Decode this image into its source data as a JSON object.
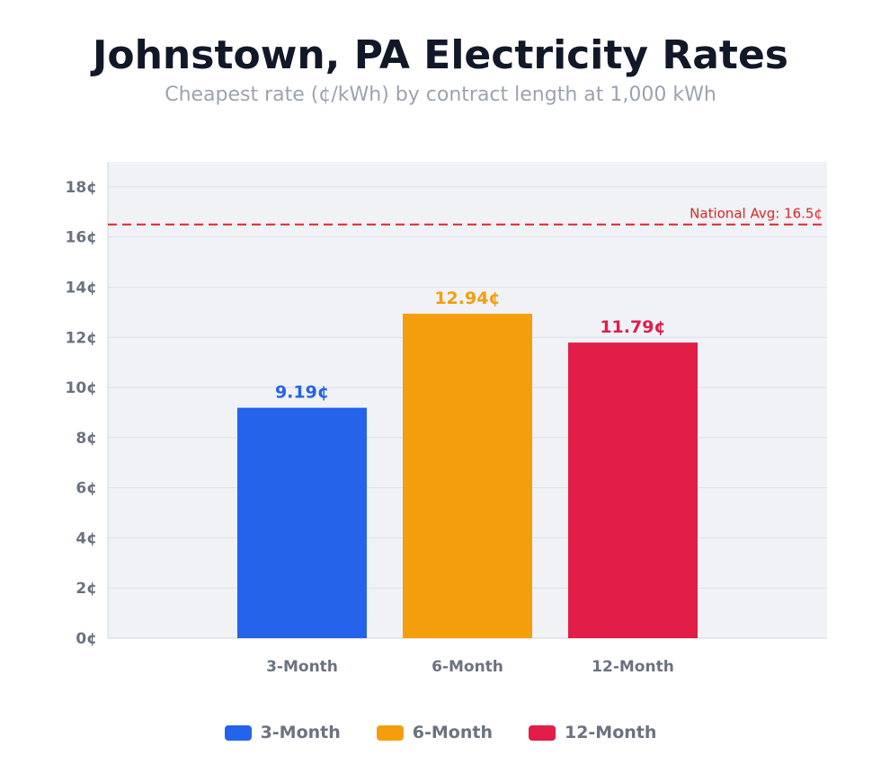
{
  "chart_data": {
    "type": "bar",
    "title": "Johnstown, PA Electricity Rates",
    "subtitle": "Cheapest rate (¢/kWh) by contract length at 1,000 kWh",
    "xlabel": "",
    "ylabel": "",
    "categories": [
      "3-Month",
      "6-Month",
      "12-Month"
    ],
    "values": [
      9.19,
      12.94,
      11.79
    ],
    "data_labels": [
      "9.19¢",
      "12.94¢",
      "11.79¢"
    ],
    "colors": [
      "#2563eb",
      "#f59e0b",
      "#e11d48"
    ],
    "ylim": [
      0,
      19
    ],
    "yticks": [
      0,
      2,
      4,
      6,
      8,
      10,
      12,
      14,
      16,
      18
    ],
    "ytick_labels": [
      "0¢",
      "2¢",
      "4¢",
      "6¢",
      "8¢",
      "10¢",
      "12¢",
      "14¢",
      "16¢",
      "18¢"
    ],
    "grid": true,
    "reference_line": {
      "value": 16.5,
      "label": "National Avg: 16.5¢",
      "color": "#dc2626",
      "style": "dashed"
    },
    "legend": {
      "placement": "bottom",
      "entries": [
        "3-Month",
        "6-Month",
        "12-Month"
      ]
    }
  }
}
